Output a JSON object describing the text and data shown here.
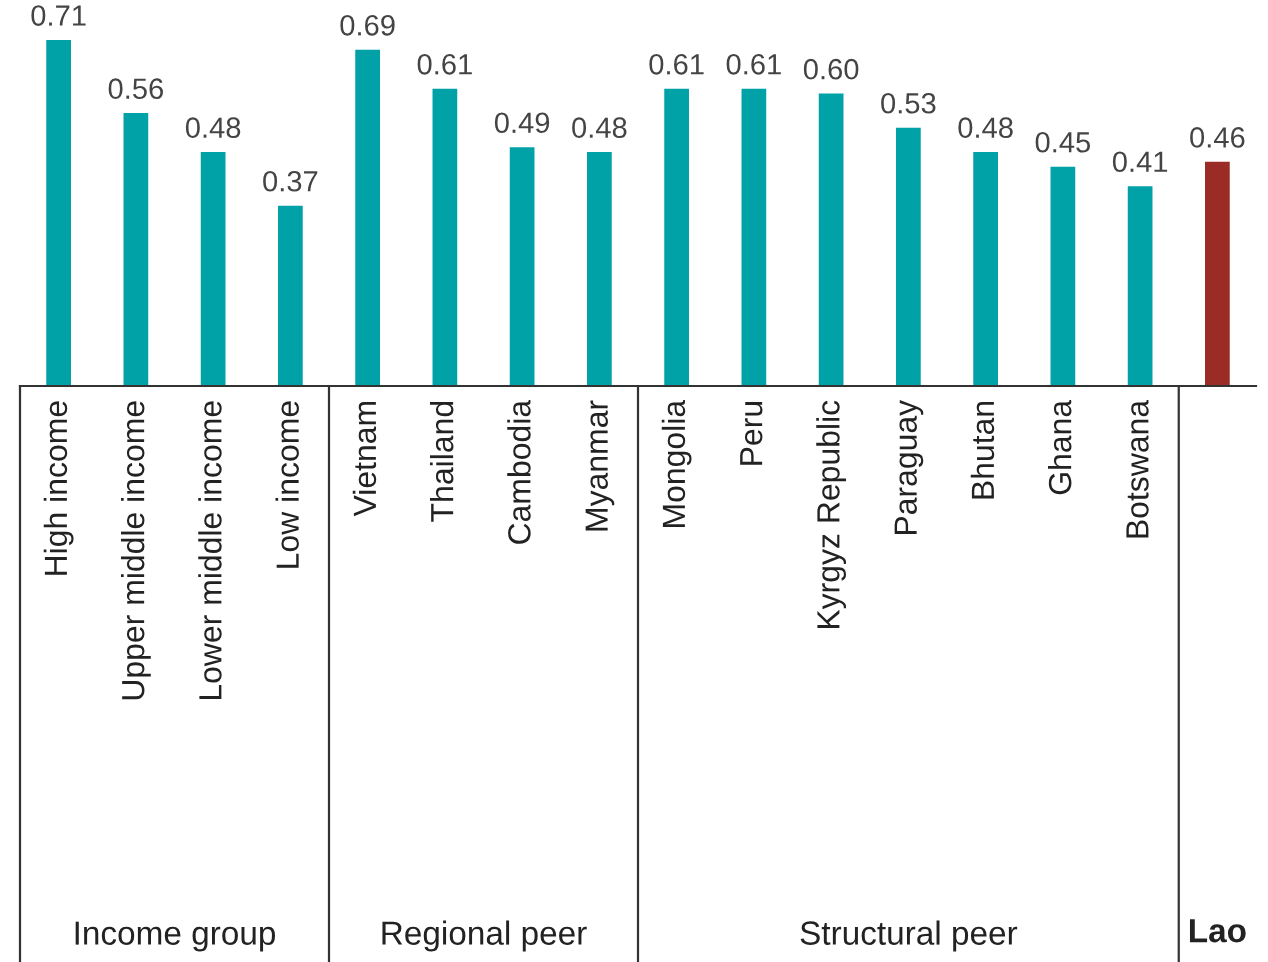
{
  "chart_data": [
    {
      "type": "bar",
      "xlabel": "Income group",
      "categories": [
        "High income",
        "Upper middle income",
        "Lower middle income",
        "Low income"
      ],
      "values": [
        0.71,
        0.56,
        0.48,
        0.37
      ],
      "colors": [
        "#00a1a7",
        "#00a1a7",
        "#00a1a7",
        "#00a1a7"
      ],
      "data_labels": true,
      "tick_labels": "x"
    },
    {
      "type": "bar",
      "xlabel": "Regional peer",
      "categories": [
        "Vietnam",
        "Thailand",
        "Cambodia",
        "Myanmar"
      ],
      "values": [
        0.69,
        0.61,
        0.49,
        0.48
      ],
      "colors": [
        "#00a1a7",
        "#00a1a7",
        "#00a1a7",
        "#00a1a7"
      ],
      "data_labels": true,
      "tick_labels": "x"
    },
    {
      "type": "bar",
      "xlabel": "Structural peer",
      "categories": [
        "Mongolia",
        "Peru",
        "Kyrgyz Republic",
        "Paraguay",
        "Bhutan",
        "Ghana",
        "Botswana"
      ],
      "values": [
        0.61,
        0.61,
        0.6,
        0.53,
        0.48,
        0.45,
        0.41
      ],
      "value_labels": [
        "0.61",
        "0.61",
        "0.60",
        "0.53",
        "0.48",
        "0.45",
        "0.41"
      ],
      "colors": [
        "#00a1a7",
        "#00a1a7",
        "#00a1a7",
        "#00a1a7",
        "#00a1a7",
        "#00a1a7",
        "#00a1a7"
      ],
      "tick_labels": "x"
    },
    {
      "type": "bar",
      "categories": [
        "Lao"
      ],
      "values": [
        0.46
      ],
      "colors": [
        "#9b2b25"
      ],
      "data_labels": true,
      "tick_labels": "x",
      "grid": false,
      "legend": false
    }
  ]
}
